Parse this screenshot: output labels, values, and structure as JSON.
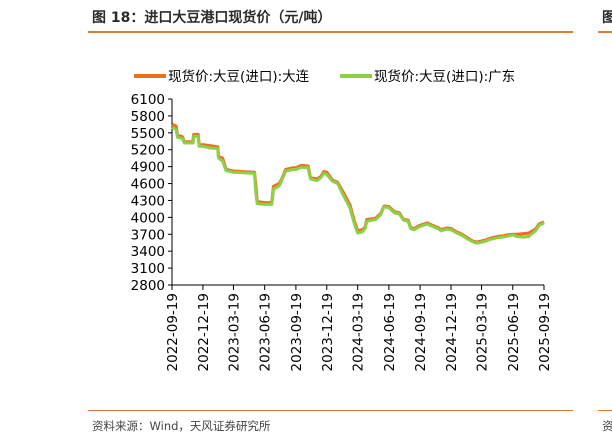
{
  "header": {
    "title": "图 18：进口大豆港口现货价（元/吨）",
    "title_right": "图"
  },
  "footer": {
    "source": "资料来源：Wind，天风证券研究所",
    "source_right": "资"
  },
  "colors": {
    "accent": "#e07b39",
    "series_dalian": "#e8711e",
    "series_guangdong": "#8fcf48"
  },
  "chart_data": {
    "type": "line",
    "title": "",
    "xlabel": "",
    "ylabel": "",
    "ylim": [
      2800,
      6100
    ],
    "yticks": [
      6100,
      5800,
      5500,
      5200,
      4900,
      4600,
      4300,
      4000,
      3700,
      3400,
      3100,
      2800
    ],
    "xlim": [
      "2022-09-19",
      "2025-09-19"
    ],
    "xticks": [
      "2022-09-19",
      "2022-12-19",
      "2023-03-19",
      "2023-06-19",
      "2023-09-19",
      "2023-12-19",
      "2024-03-19",
      "2024-06-19",
      "2024-09-19",
      "2024-12-19",
      "2025-03-19",
      "2025-06-19",
      "2025-09-19"
    ],
    "grid": false,
    "legend": "top",
    "series": [
      {
        "name": "现货价:大豆(进口):大连",
        "color": "#e8711e",
        "points": [
          [
            "2022-09-19",
            5650
          ],
          [
            "2022-10-01",
            5620
          ],
          [
            "2022-10-05",
            5450
          ],
          [
            "2022-10-20",
            5430
          ],
          [
            "2022-10-25",
            5340
          ],
          [
            "2022-11-20",
            5340
          ],
          [
            "2022-11-22",
            5470
          ],
          [
            "2022-12-05",
            5470
          ],
          [
            "2022-12-08",
            5280
          ],
          [
            "2022-12-19",
            5290
          ],
          [
            "2023-01-10",
            5270
          ],
          [
            "2023-02-01",
            5250
          ],
          [
            "2023-02-03",
            5080
          ],
          [
            "2023-02-15",
            5050
          ],
          [
            "2023-02-25",
            4850
          ],
          [
            "2023-03-19",
            4820
          ],
          [
            "2023-04-15",
            4810
          ],
          [
            "2023-05-20",
            4800
          ],
          [
            "2023-05-23",
            4620
          ],
          [
            "2023-05-28",
            4280
          ],
          [
            "2023-06-19",
            4260
          ],
          [
            "2023-07-10",
            4260
          ],
          [
            "2023-07-15",
            4550
          ],
          [
            "2023-08-01",
            4600
          ],
          [
            "2023-08-10",
            4700
          ],
          [
            "2023-08-20",
            4850
          ],
          [
            "2023-09-10",
            4880
          ],
          [
            "2023-09-19",
            4880
          ],
          [
            "2023-10-05",
            4920
          ],
          [
            "2023-10-25",
            4910
          ],
          [
            "2023-11-01",
            4700
          ],
          [
            "2023-11-20",
            4680
          ],
          [
            "2023-12-01",
            4720
          ],
          [
            "2023-12-10",
            4810
          ],
          [
            "2023-12-19",
            4800
          ],
          [
            "2024-01-05",
            4660
          ],
          [
            "2024-01-20",
            4620
          ],
          [
            "2024-02-05",
            4450
          ],
          [
            "2024-02-25",
            4220
          ],
          [
            "2024-03-10",
            3920
          ],
          [
            "2024-03-19",
            3760
          ],
          [
            "2024-04-01",
            3780
          ],
          [
            "2024-04-10",
            3820
          ],
          [
            "2024-04-15",
            3960
          ],
          [
            "2024-05-10",
            3980
          ],
          [
            "2024-05-25",
            4060
          ],
          [
            "2024-06-05",
            4200
          ],
          [
            "2024-06-19",
            4190
          ],
          [
            "2024-07-05",
            4100
          ],
          [
            "2024-07-20",
            4080
          ],
          [
            "2024-08-01",
            3960
          ],
          [
            "2024-08-15",
            3950
          ],
          [
            "2024-08-22",
            3820
          ],
          [
            "2024-09-01",
            3800
          ],
          [
            "2024-09-19",
            3860
          ],
          [
            "2024-10-10",
            3900
          ],
          [
            "2024-10-25",
            3860
          ],
          [
            "2024-11-10",
            3820
          ],
          [
            "2024-11-20",
            3780
          ],
          [
            "2024-12-05",
            3810
          ],
          [
            "2024-12-19",
            3800
          ],
          [
            "2025-01-05",
            3740
          ],
          [
            "2025-01-20",
            3700
          ],
          [
            "2025-02-05",
            3640
          ],
          [
            "2025-02-20",
            3580
          ],
          [
            "2025-03-05",
            3560
          ],
          [
            "2025-03-19",
            3580
          ],
          [
            "2025-04-01",
            3600
          ],
          [
            "2025-04-15",
            3630
          ],
          [
            "2025-05-05",
            3660
          ],
          [
            "2025-05-20",
            3670
          ],
          [
            "2025-06-05",
            3690
          ],
          [
            "2025-06-19",
            3700
          ],
          [
            "2025-07-01",
            3700
          ],
          [
            "2025-07-20",
            3710
          ],
          [
            "2025-08-05",
            3720
          ],
          [
            "2025-08-25",
            3790
          ],
          [
            "2025-09-05",
            3880
          ],
          [
            "2025-09-19",
            3920
          ]
        ]
      },
      {
        "name": "现货价:大豆(进口):广东",
        "color": "#8fcf48",
        "points": [
          [
            "2022-09-19",
            5600
          ],
          [
            "2022-10-01",
            5560
          ],
          [
            "2022-10-05",
            5420
          ],
          [
            "2022-10-20",
            5400
          ],
          [
            "2022-10-25",
            5320
          ],
          [
            "2022-11-20",
            5320
          ],
          [
            "2022-11-22",
            5440
          ],
          [
            "2022-12-05",
            5440
          ],
          [
            "2022-12-08",
            5260
          ],
          [
            "2022-12-19",
            5260
          ],
          [
            "2023-01-10",
            5230
          ],
          [
            "2023-02-01",
            5220
          ],
          [
            "2023-02-03",
            5050
          ],
          [
            "2023-02-15",
            5000
          ],
          [
            "2023-02-25",
            4830
          ],
          [
            "2023-03-19",
            4800
          ],
          [
            "2023-04-15",
            4790
          ],
          [
            "2023-05-20",
            4780
          ],
          [
            "2023-05-23",
            4500
          ],
          [
            "2023-05-28",
            4240
          ],
          [
            "2023-06-19",
            4230
          ],
          [
            "2023-07-10",
            4230
          ],
          [
            "2023-07-15",
            4500
          ],
          [
            "2023-08-01",
            4560
          ],
          [
            "2023-08-10",
            4680
          ],
          [
            "2023-08-20",
            4820
          ],
          [
            "2023-09-10",
            4850
          ],
          [
            "2023-09-19",
            4850
          ],
          [
            "2023-10-05",
            4890
          ],
          [
            "2023-10-25",
            4880
          ],
          [
            "2023-11-01",
            4680
          ],
          [
            "2023-11-20",
            4650
          ],
          [
            "2023-12-01",
            4700
          ],
          [
            "2023-12-10",
            4780
          ],
          [
            "2023-12-19",
            4760
          ],
          [
            "2024-01-05",
            4640
          ],
          [
            "2024-01-20",
            4600
          ],
          [
            "2024-02-05",
            4400
          ],
          [
            "2024-02-25",
            4170
          ],
          [
            "2024-03-10",
            3870
          ],
          [
            "2024-03-19",
            3720
          ],
          [
            "2024-04-01",
            3740
          ],
          [
            "2024-04-10",
            3800
          ],
          [
            "2024-04-15",
            3930
          ],
          [
            "2024-05-10",
            3960
          ],
          [
            "2024-05-25",
            4040
          ],
          [
            "2024-06-05",
            4190
          ],
          [
            "2024-06-19",
            4170
          ],
          [
            "2024-07-05",
            4080
          ],
          [
            "2024-07-20",
            4060
          ],
          [
            "2024-08-01",
            3950
          ],
          [
            "2024-08-15",
            3930
          ],
          [
            "2024-08-22",
            3800
          ],
          [
            "2024-09-01",
            3780
          ],
          [
            "2024-09-19",
            3840
          ],
          [
            "2024-10-10",
            3880
          ],
          [
            "2024-10-25",
            3840
          ],
          [
            "2024-11-10",
            3800
          ],
          [
            "2024-11-20",
            3760
          ],
          [
            "2024-12-05",
            3790
          ],
          [
            "2024-12-19",
            3780
          ],
          [
            "2025-01-05",
            3720
          ],
          [
            "2025-01-20",
            3680
          ],
          [
            "2025-02-05",
            3620
          ],
          [
            "2025-02-20",
            3570
          ],
          [
            "2025-03-05",
            3540
          ],
          [
            "2025-03-19",
            3560
          ],
          [
            "2025-04-01",
            3580
          ],
          [
            "2025-04-15",
            3610
          ],
          [
            "2025-05-05",
            3640
          ],
          [
            "2025-05-20",
            3650
          ],
          [
            "2025-06-05",
            3670
          ],
          [
            "2025-06-19",
            3690
          ],
          [
            "2025-07-01",
            3660
          ],
          [
            "2025-07-20",
            3650
          ],
          [
            "2025-08-05",
            3660
          ],
          [
            "2025-08-25",
            3760
          ],
          [
            "2025-09-05",
            3860
          ],
          [
            "2025-09-19",
            3900
          ]
        ]
      }
    ]
  }
}
